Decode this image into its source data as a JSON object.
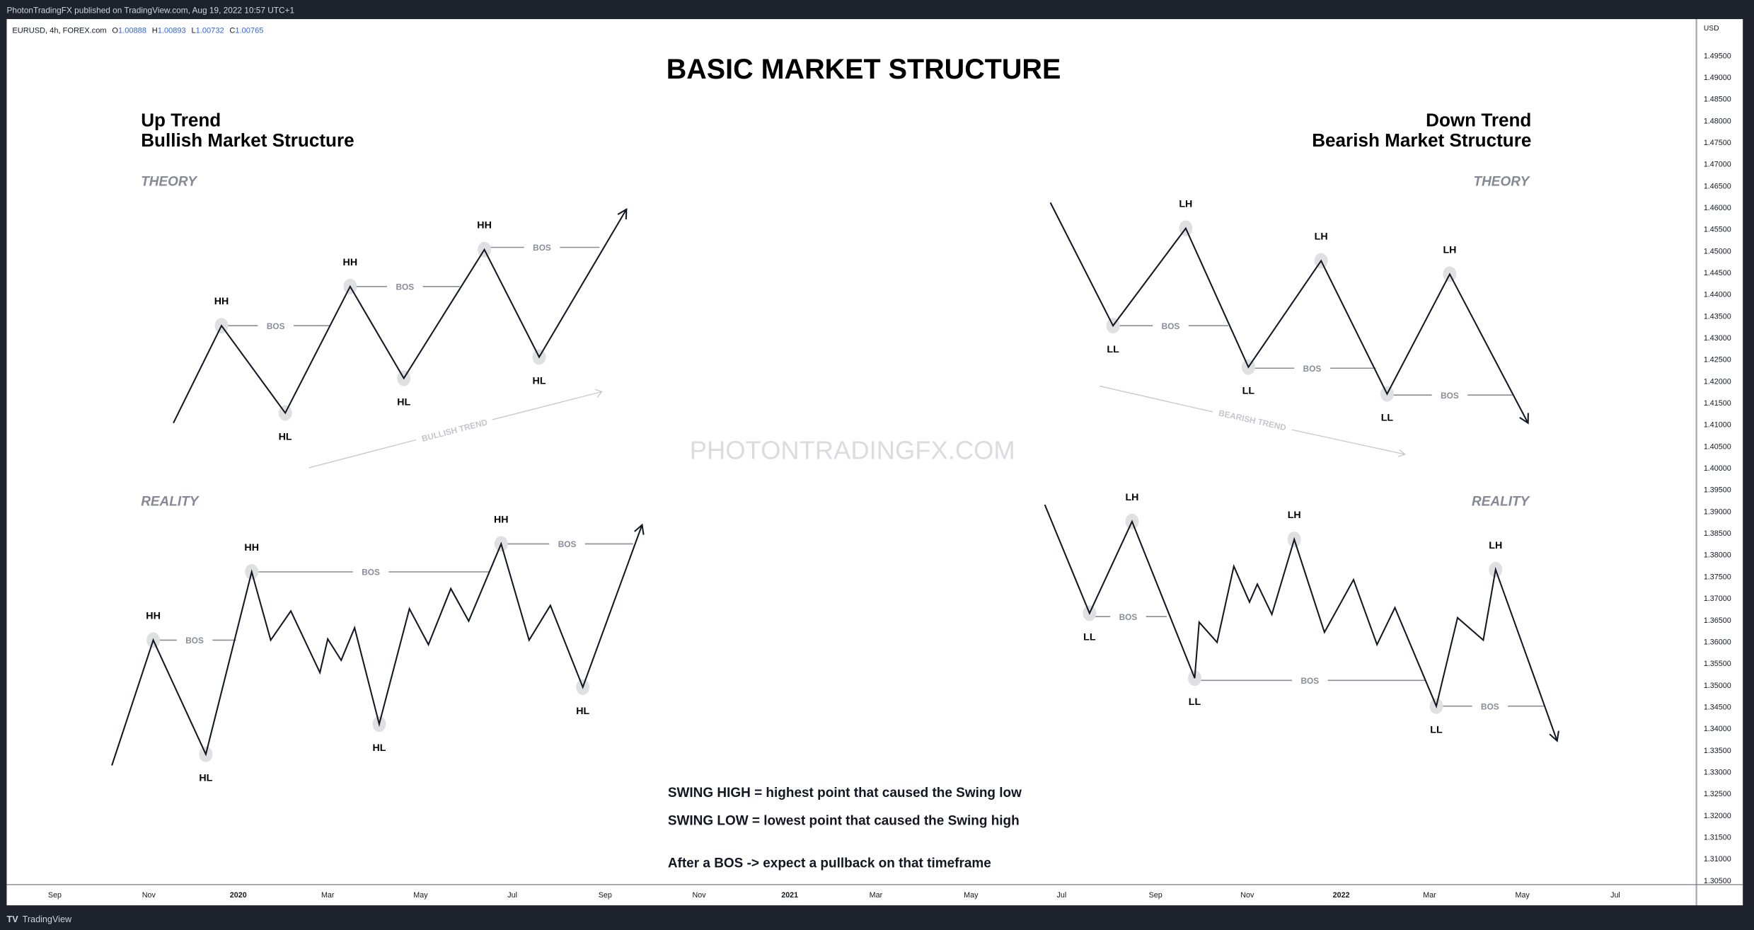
{
  "header": {
    "published": "PhotonTradingFX published on TradingView.com, Aug 19, 2022 10:57 UTC+1"
  },
  "legend": {
    "symbol": "EURUSD, 4h, FOREX.com",
    "o_label": "O",
    "o": "1.00888",
    "h_label": "H",
    "h": "1.00893",
    "l_label": "L",
    "l": "1.00732",
    "c_label": "C",
    "c": "1.00765"
  },
  "title": "BASIC MARKET STRUCTURE",
  "left": {
    "line1": "Up Trend",
    "line2": "Bullish Market Structure",
    "theory": "THEORY",
    "reality": "REALITY",
    "trend": "BULLISH TREND"
  },
  "right": {
    "line1": "Down Trend",
    "line2": "Bearish Market Structure",
    "theory": "THEORY",
    "reality": "REALITY",
    "trend": "BEARISH TREND"
  },
  "labels": {
    "hh": "HH",
    "hl": "HL",
    "lh": "LH",
    "ll": "LL",
    "bos": "BOS"
  },
  "watermark": "PHOTONTRADINGFX.COM",
  "notes": [
    "SWING HIGH = highest point that caused the Swing low",
    "SWING LOW = lowest point that caused the Swing high",
    "After a BOS -> expect a pullback on that timeframe"
  ],
  "price_axis": {
    "currency": "USD",
    "ticks": [
      "1.49500",
      "1.49000",
      "1.48500",
      "1.48000",
      "1.47500",
      "1.47000",
      "1.46500",
      "1.46000",
      "1.45500",
      "1.45000",
      "1.44500",
      "1.44000",
      "1.43500",
      "1.43000",
      "1.42500",
      "1.42000",
      "1.41500",
      "1.41000",
      "1.40500",
      "1.40000",
      "1.39500",
      "1.39000",
      "1.38500",
      "1.38000",
      "1.37500",
      "1.37000",
      "1.36500",
      "1.36000",
      "1.35500",
      "1.35000",
      "1.34500",
      "1.34000",
      "1.33500",
      "1.33000",
      "1.32500",
      "1.32000",
      "1.31500",
      "1.31000",
      "1.30500"
    ]
  },
  "time_axis": {
    "ticks": [
      "Sep",
      "Nov",
      "2020",
      "Mar",
      "May",
      "Jul",
      "Sep",
      "Nov",
      "2021",
      "Mar",
      "May",
      "Jul",
      "Sep",
      "Nov",
      "2022",
      "Mar",
      "May",
      "Jul"
    ]
  },
  "footer": {
    "brand": "TradingView"
  },
  "colors": {
    "frame": "#1e222d",
    "line": "#131722",
    "bos": "#8a8d99",
    "marker": "#e0e0e3",
    "ohlc": "#2962ff",
    "muted": "#868993"
  }
}
